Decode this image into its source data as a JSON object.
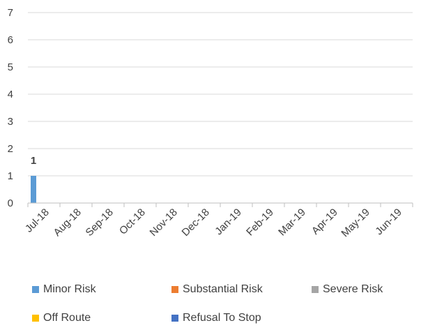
{
  "chart_data": {
    "type": "bar",
    "title": "",
    "xlabel": "",
    "ylabel": "",
    "ylim": [
      0,
      7
    ],
    "yticks": [
      0,
      1,
      2,
      3,
      4,
      5,
      6,
      7
    ],
    "grid": true,
    "legend_position": "bottom",
    "categories": [
      "Jul-18",
      "Aug-18",
      "Sep-18",
      "Oct-18",
      "Nov-18",
      "Dec-18",
      "Jan-19",
      "Feb-19",
      "Mar-19",
      "Apr-19",
      "May-19",
      "Jun-19"
    ],
    "series": [
      {
        "name": "Minor Risk",
        "color": "#5B9BD5",
        "values": [
          1,
          0,
          0,
          0,
          0,
          0,
          0,
          0,
          0,
          0,
          0,
          0
        ]
      },
      {
        "name": "Substantial Risk",
        "color": "#ED7D31",
        "values": [
          0,
          0,
          0,
          0,
          0,
          0,
          0,
          0,
          0,
          0,
          0,
          0
        ]
      },
      {
        "name": "Severe Risk",
        "color": "#A5A5A5",
        "values": [
          0,
          0,
          0,
          0,
          0,
          0,
          0,
          0,
          0,
          0,
          0,
          0
        ]
      },
      {
        "name": "Off Route",
        "color": "#FFC000",
        "values": [
          0,
          0,
          0,
          0,
          0,
          0,
          0,
          0,
          0,
          0,
          0,
          0
        ]
      },
      {
        "name": "Refusal To Stop",
        "color": "#4472C4",
        "values": [
          0,
          0,
          0,
          0,
          0,
          0,
          0,
          0,
          0,
          0,
          0,
          0
        ]
      }
    ],
    "data_labels": [
      {
        "series": "Minor Risk",
        "category": "Jul-18",
        "text": "1"
      }
    ]
  }
}
